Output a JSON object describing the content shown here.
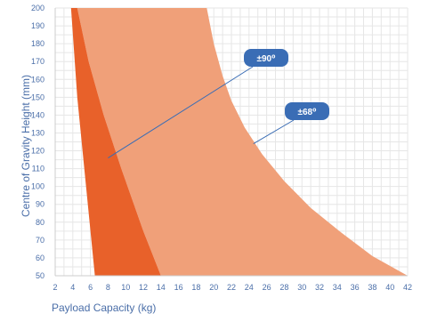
{
  "chart_data": {
    "type": "area",
    "xlabel": "Payload Capacity (kg)",
    "ylabel": "Centre of Gravity Height (mm)",
    "xlim": [
      2,
      42
    ],
    "ylim": [
      50,
      200
    ],
    "x_ticks": [
      2,
      4,
      6,
      8,
      10,
      12,
      14,
      16,
      18,
      20,
      22,
      24,
      26,
      28,
      30,
      32,
      34,
      36,
      38,
      40,
      42
    ],
    "y_ticks": [
      50,
      60,
      70,
      80,
      90,
      100,
      110,
      120,
      130,
      140,
      150,
      160,
      170,
      180,
      190,
      200
    ],
    "grid": true,
    "colors": {
      "region_68": "#f0a079",
      "region_90": "#e8612a",
      "badge": "#3a6db5",
      "grid": "#e6e6e6",
      "text": "#4a6ea8"
    },
    "series": [
      {
        "name": "±68⁰",
        "boundary_left": {
          "x": [
            4.5,
            5.8,
            7.5,
            9.5,
            12,
            14
          ],
          "y": [
            200,
            170,
            140,
            110,
            75,
            50
          ]
        },
        "boundary_right": {
          "x": [
            19.2,
            20,
            21,
            22,
            23.5,
            25.5,
            28,
            31,
            34.5,
            38,
            42
          ],
          "y": [
            200,
            180,
            162,
            148,
            133,
            118,
            103,
            88,
            74,
            61,
            50
          ]
        }
      },
      {
        "name": "±90⁰",
        "boundary_left": {
          "x": [
            3.8,
            4.5,
            5.5,
            6.5
          ],
          "y": [
            200,
            150,
            100,
            50
          ]
        },
        "boundary_right": {
          "x": [
            4.5,
            5.8,
            7.5,
            9.5,
            12,
            14
          ],
          "y": [
            200,
            170,
            140,
            110,
            75,
            50
          ]
        }
      }
    ],
    "annotations": [
      {
        "label": "±90⁰",
        "points_to": {
          "x": 8,
          "y": 116
        }
      },
      {
        "label": "±68⁰",
        "points_to": {
          "x": 24.5,
          "y": 124
        }
      }
    ]
  }
}
